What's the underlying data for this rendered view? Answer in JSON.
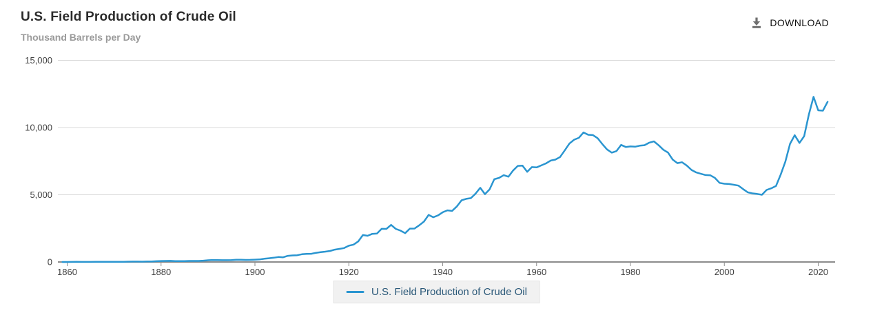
{
  "header": {
    "title": "U.S. Field Production of Crude Oil",
    "subtitle": "Thousand Barrels per Day",
    "download_label": "DOWNLOAD"
  },
  "legend": {
    "items": [
      {
        "label": "U.S. Field Production of Crude Oil",
        "color": "#2a95d0"
      }
    ],
    "position": "bottom-center"
  },
  "colors": {
    "series": "#2a95d0",
    "gridline": "#d9d9d9",
    "axis": "#8c8c8c",
    "tick_label": "#404040",
    "title": "#2b2b2b",
    "subtitle": "#9a9a9a",
    "download_icon": "#6e6e6e",
    "download_text": "#111111",
    "legend_bg": "#f1f1f1",
    "legend_border": "#e3e3e3",
    "legend_text": "#2a5878"
  },
  "chart_data": {
    "type": "line",
    "title": "U.S. Field Production of Crude Oil",
    "xlabel": "",
    "ylabel": "Thousand Barrels per Day",
    "xlim": [
      1858,
      2024
    ],
    "ylim": [
      0,
      15000
    ],
    "grid": "horizontal",
    "legend_position": "bottom-center",
    "x_ticks": [
      1860,
      1880,
      1900,
      1920,
      1940,
      1960,
      1980,
      2000,
      2020
    ],
    "y_ticks": [
      0,
      5000,
      10000,
      15000
    ],
    "y_tick_labels": [
      "0",
      "5,000",
      "10,000",
      "15,000"
    ],
    "series": [
      {
        "name": "U.S. Field Production of Crude Oil",
        "color": "#2a95d0",
        "x_start": 1859,
        "x_end": 2022,
        "x_step": 1,
        "values": [
          0.5,
          1.4,
          5.8,
          8.3,
          7.1,
          5.8,
          6.7,
          9.9,
          9.2,
          9.9,
          11.5,
          14.4,
          14.3,
          17.4,
          27,
          30,
          33,
          25,
          37,
          42,
          55,
          72,
          76,
          83,
          64,
          66,
          60,
          77,
          78,
          76,
          96,
          126,
          149,
          138,
          133,
          135,
          145,
          167,
          166,
          152,
          157,
          174,
          190,
          243,
          275,
          320,
          369,
          348,
          455,
          488,
          502,
          574,
          604,
          609,
          681,
          728,
          770,
          822,
          919,
          975,
          1037,
          1210,
          1294,
          1527,
          2007,
          1951,
          2092,
          2112,
          2469,
          2463,
          2760,
          2460,
          2332,
          2145,
          2481,
          2488,
          2730,
          3004,
          3505,
          3327,
          3466,
          3697,
          3842,
          3799,
          4125,
          4584,
          4695,
          4750,
          5088,
          5520,
          5046,
          5407,
          6158,
          6256,
          6458,
          6342,
          6807,
          7151,
          7170,
          6710,
          7054,
          7035,
          7183,
          7332,
          7542,
          7614,
          7804,
          8295,
          8810,
          9096,
          9238,
          9637,
          9463,
          9441,
          9208,
          8774,
          8375,
          8132,
          8245,
          8707,
          8552,
          8597,
          8572,
          8649,
          8688,
          8879,
          8971,
          8680,
          8349,
          8140,
          7613,
          7355,
          7417,
          7171,
          6847,
          6662,
          6560,
          6465,
          6452,
          6252,
          5881,
          5822,
          5801,
          5746,
          5681,
          5419,
          5178,
          5102,
          5064,
          5000,
          5361,
          5482,
          5653,
          6499,
          7468,
          8789,
          9431,
          8856,
          9357,
          10964,
          12289,
          11283,
          11254,
          11911
        ]
      }
    ]
  }
}
